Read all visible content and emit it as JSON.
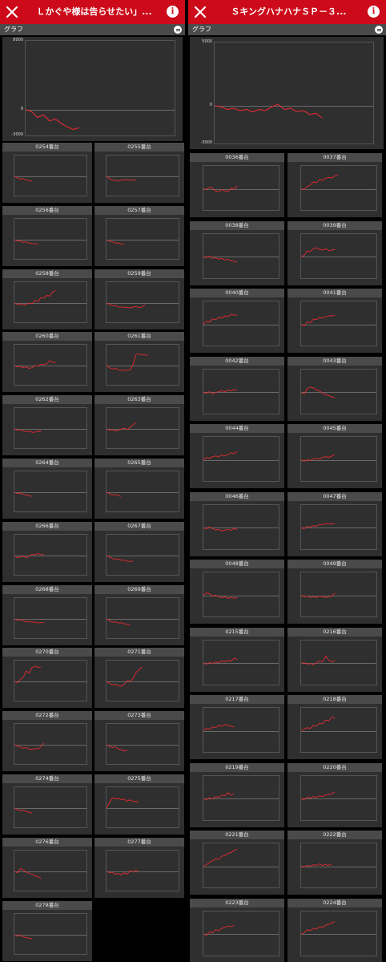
{
  "left": {
    "header": {
      "title": "Ｌかぐや様は告らせたい」..."
    },
    "subbar": {
      "label": "グラフ"
    },
    "summary": {
      "ymax": "8000",
      "yzero": "0",
      "ymin": "-3000",
      "series": [
        [
          0,
          0
        ],
        [
          1,
          -200
        ],
        [
          2,
          -900
        ],
        [
          3,
          -600
        ],
        [
          4,
          -1300
        ],
        [
          5,
          -1100
        ],
        [
          6,
          -1600
        ],
        [
          7,
          -2000
        ],
        [
          8,
          -2300
        ],
        [
          9,
          -2100
        ]
      ]
    },
    "machines": [
      {
        "name": "0254番台",
        "series": [
          0,
          -200,
          -400,
          -300,
          -500,
          -650,
          -700
        ]
      },
      {
        "name": "0255番台",
        "series": [
          0,
          -300,
          -600,
          -500,
          -700,
          -500,
          -550,
          -400,
          -600,
          -500,
          -550
        ]
      },
      {
        "name": "0256番台",
        "series": [
          0,
          -200,
          -100,
          -400,
          -300,
          -500,
          -600,
          -550,
          -700
        ]
      },
      {
        "name": "0257番台",
        "series": [
          0,
          -200,
          -300,
          -500,
          -450,
          -600,
          -700
        ]
      },
      {
        "name": "0258番台",
        "series": [
          0,
          -200,
          -100,
          -300,
          -200,
          0,
          -100,
          400,
          200,
          800,
          700,
          1100,
          1000,
          1600,
          1800
        ]
      },
      {
        "name": "0259番台",
        "series": [
          0,
          -200,
          -400,
          -300,
          -600,
          -550,
          -650,
          -600,
          -700,
          -600,
          -500,
          -650,
          -600,
          -200
        ]
      },
      {
        "name": "0260番台",
        "series": [
          0,
          -200,
          -100,
          -300,
          -200,
          -400,
          -300,
          0,
          -100,
          200,
          100,
          300,
          700,
          500,
          400
        ]
      },
      {
        "name": "0261番台",
        "series": [
          0,
          -300,
          -500,
          -400,
          -600,
          -700,
          -650,
          -700,
          -600,
          100,
          1600,
          1700,
          1500,
          1600,
          1400
        ]
      },
      {
        "name": "0262番台",
        "series": [
          0,
          -200,
          -100,
          -300,
          -400,
          -300,
          -500,
          -450,
          -350,
          -400
        ]
      },
      {
        "name": "0263番台",
        "series": [
          0,
          -200,
          -100,
          -300,
          -200,
          0,
          100,
          -100,
          200,
          600,
          900
        ]
      },
      {
        "name": "0264番台",
        "series": [
          0,
          -200,
          -100,
          -300,
          -400,
          -500,
          -600
        ]
      },
      {
        "name": "0265番台",
        "series": [
          0,
          -200,
          -400,
          -300,
          -500,
          -600
        ]
      },
      {
        "name": "0266番台",
        "series": [
          0,
          -300,
          -200,
          -100,
          -300,
          -100,
          200,
          100,
          300,
          100,
          200
        ]
      },
      {
        "name": "0267番台",
        "series": [
          0,
          -200,
          -400,
          -600,
          -500,
          -700,
          -650,
          -800,
          -850,
          -750
        ]
      },
      {
        "name": "0268番台",
        "series": [
          0,
          -200,
          -100,
          -300,
          -400,
          -350,
          -500,
          -450,
          -600,
          -500,
          -550
        ]
      },
      {
        "name": "0269番台",
        "series": [
          0,
          -200,
          -500,
          -400,
          -600,
          -550,
          -700,
          -800,
          -900
        ]
      },
      {
        "name": "0270番台",
        "series": [
          0,
          -200,
          300,
          600,
          1500,
          1200,
          2000,
          2200,
          2000,
          2100
        ]
      },
      {
        "name": "0271番台",
        "series": [
          0,
          -300,
          -500,
          -400,
          -600,
          -700,
          -400,
          100,
          0,
          400,
          1300,
          1600,
          2100
        ]
      },
      {
        "name": "0272番台",
        "series": [
          0,
          -200,
          -300,
          -500,
          -400,
          -600,
          -700,
          -500,
          -600,
          -300,
          300
        ]
      },
      {
        "name": "0273番台",
        "series": [
          0,
          -200,
          -400,
          -300,
          -600,
          -700,
          -900,
          -800
        ]
      },
      {
        "name": "0274番台",
        "series": [
          0,
          -200,
          -400,
          -300,
          -500,
          -600,
          -700
        ]
      },
      {
        "name": "0275番台",
        "series": [
          0,
          800,
          1500,
          1300,
          1400,
          1200,
          1300,
          1000,
          1200,
          900,
          1000,
          800
        ]
      },
      {
        "name": "0276番台",
        "series": [
          0,
          -200,
          400,
          200,
          -100,
          -300,
          -400,
          -600,
          -800,
          -1000
        ]
      },
      {
        "name": "0277番台",
        "series": [
          0,
          -200,
          -100,
          -400,
          -300,
          -500,
          -200,
          -400,
          100,
          -100,
          200,
          -100
        ]
      },
      {
        "name": "0278番台",
        "series": [
          0,
          -200,
          -100,
          -300,
          -400,
          -500,
          -600
        ]
      }
    ]
  },
  "right": {
    "header": {
      "title": "ＳキングハナハナＳＰ－３..."
    },
    "subbar": {
      "label": "グラフ"
    },
    "summary": {
      "ymax": "5000",
      "yzero": "0",
      "ymin": "-3000",
      "series": [
        [
          0,
          0
        ],
        [
          1,
          -100
        ],
        [
          2,
          -300
        ],
        [
          3,
          -200
        ],
        [
          4,
          -400
        ],
        [
          5,
          -300
        ],
        [
          6,
          -500
        ],
        [
          7,
          -300
        ],
        [
          8,
          -400
        ],
        [
          9,
          -100
        ],
        [
          10,
          100
        ],
        [
          11,
          -300
        ],
        [
          12,
          -200
        ],
        [
          13,
          -500
        ],
        [
          14,
          -400
        ],
        [
          15,
          -700
        ],
        [
          16,
          -600
        ],
        [
          17,
          -1000
        ]
      ]
    },
    "machines": [
      {
        "name": "0036番台",
        "series": [
          0,
          -100,
          200,
          100,
          -300,
          -400,
          -100,
          -300,
          -400,
          100,
          -100,
          400
        ]
      },
      {
        "name": "0037番台",
        "series": [
          0,
          -100,
          300,
          500,
          900,
          800,
          1200,
          1100,
          1400,
          1500,
          1400,
          1700,
          1800
        ]
      },
      {
        "name": "0038番台",
        "series": [
          0,
          -100,
          100,
          -200,
          -100,
          -300,
          -200,
          -400,
          -300,
          -500,
          -600,
          -700
        ]
      },
      {
        "name": "0039番台",
        "series": [
          0,
          200,
          800,
          700,
          1100,
          1200,
          1000,
          900,
          1100,
          800,
          900,
          1000
        ]
      },
      {
        "name": "0040番台",
        "series": [
          0,
          400,
          300,
          700,
          600,
          900,
          800,
          1100,
          1000,
          1300,
          1200,
          1200
        ]
      },
      {
        "name": "0041番台",
        "series": [
          0,
          -200,
          300,
          200,
          700,
          600,
          900,
          800,
          1000,
          1100,
          1100,
          1200
        ]
      },
      {
        "name": "0042番台",
        "series": [
          0,
          -100,
          100,
          -200,
          0,
          100,
          200,
          100,
          300,
          200,
          400,
          300
        ]
      },
      {
        "name": "0043番台",
        "series": [
          0,
          -200,
          500,
          700,
          600,
          300,
          200,
          -100,
          -300,
          -400,
          -600,
          -700
        ]
      },
      {
        "name": "0044番台",
        "series": [
          0,
          300,
          200,
          400,
          500,
          400,
          600,
          500,
          700,
          900,
          800,
          1100
        ]
      },
      {
        "name": "0045番台",
        "series": [
          0,
          -200,
          0,
          -100,
          100,
          200,
          100,
          300,
          400,
          300,
          500,
          700
        ]
      },
      {
        "name": "0046番台",
        "series": [
          0,
          -100,
          100,
          -100,
          -300,
          -200,
          -400,
          -300,
          -200,
          -300,
          -100,
          -200
        ]
      },
      {
        "name": "0047番台",
        "series": [
          0,
          -100,
          200,
          100,
          300,
          200,
          500,
          400,
          600,
          500,
          600,
          500
        ]
      },
      {
        "name": "0048番台",
        "series": [
          0,
          300,
          200,
          -100,
          0,
          -200,
          -300,
          -200,
          -400,
          -300,
          -400,
          -300
        ]
      },
      {
        "name": "0049番台",
        "series": [
          0,
          -200,
          -100,
          -300,
          -200,
          -300,
          -100,
          -200,
          -300,
          -200,
          -100,
          300
        ]
      },
      {
        "name": "0215番台",
        "series": [
          0,
          -100,
          100,
          0,
          200,
          100,
          300,
          200,
          400,
          300,
          700,
          500
        ]
      },
      {
        "name": "0216番台",
        "series": [
          0,
          100,
          -100,
          0,
          -200,
          100,
          300,
          200,
          1000,
          400,
          200,
          300
        ]
      },
      {
        "name": "0217番台",
        "series": [
          0,
          300,
          200,
          500,
          400,
          700,
          600,
          800,
          700,
          600,
          500
        ]
      },
      {
        "name": "0218番台",
        "series": [
          0,
          200,
          400,
          300,
          700,
          600,
          1000,
          900,
          1400,
          1300,
          1800,
          1600
        ]
      },
      {
        "name": "0219番台",
        "series": [
          0,
          -100,
          100,
          0,
          300,
          200,
          500,
          400,
          800,
          500,
          700
        ]
      },
      {
        "name": "0220番台",
        "series": [
          0,
          -100,
          200,
          100,
          300,
          200,
          400,
          300,
          500,
          600,
          700,
          900
        ]
      },
      {
        "name": "0221番台",
        "series": [
          0,
          200,
          500,
          700,
          1000,
          900,
          1300,
          1400,
          1700,
          1800,
          2100,
          2200
        ]
      },
      {
        "name": "0222番台",
        "series": [
          0,
          -100,
          100,
          0,
          200,
          100,
          300,
          100,
          200,
          100,
          300
        ]
      },
      {
        "name": "0223番台",
        "series": [
          0,
          -100,
          300,
          200,
          600,
          500,
          800,
          900,
          1100,
          1000,
          1200
        ]
      },
      {
        "name": "0224番台",
        "series": [
          0,
          200,
          600,
          500,
          800,
          700,
          1000,
          900,
          1200,
          1300,
          1500,
          1700
        ]
      }
    ]
  }
}
